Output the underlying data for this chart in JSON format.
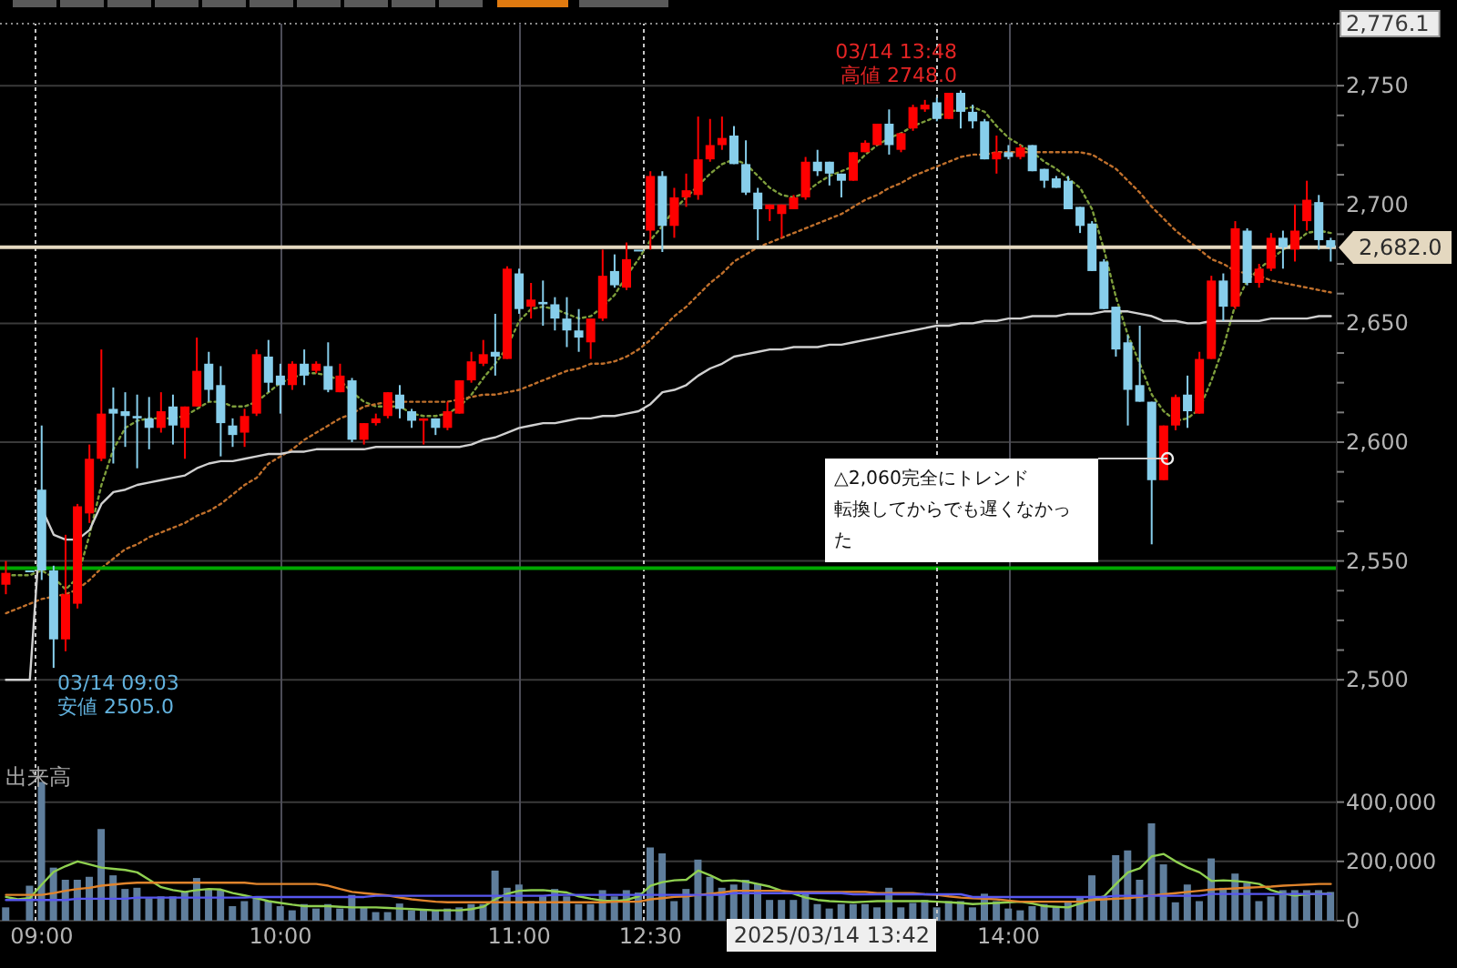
{
  "chart_data": [
    {
      "type": "candlestick",
      "categories": [
        null,
        null,
        null,
        null,
        null,
        null,
        null,
        null,
        null,
        null,
        null,
        null,
        null,
        null,
        null,
        null,
        null,
        null,
        null,
        null,
        null,
        null,
        null,
        null,
        null,
        null,
        null,
        null,
        null,
        null,
        null,
        null,
        null,
        null,
        null,
        null,
        null,
        null,
        null,
        null,
        null,
        null,
        null,
        null,
        null,
        null,
        null,
        null,
        null,
        null,
        null,
        null,
        null,
        null,
        null,
        null,
        null,
        null,
        null,
        null,
        null,
        null,
        null,
        null,
        null,
        null,
        null,
        null,
        null,
        null,
        null,
        null,
        null,
        null,
        null,
        null,
        null,
        null,
        null,
        null,
        null,
        null,
        null,
        null,
        null,
        null,
        null,
        null,
        null,
        null,
        null,
        null,
        null,
        null,
        null,
        null,
        null,
        null,
        null,
        null,
        null,
        null,
        null,
        null,
        null,
        null,
        null,
        null,
        null,
        null,
        null,
        null
      ],
      "ohlc": [
        [
          2540,
          2550,
          2536,
          2545
        ],
        null,
        [
          2546,
          2546,
          2546,
          2546
        ],
        [
          2580,
          2607,
          2542,
          2546
        ],
        [
          2546,
          2548,
          2505,
          2517
        ],
        [
          2517,
          2561,
          2512,
          2536
        ],
        [
          2532,
          2574,
          2530,
          2573
        ],
        [
          2570,
          2599,
          2566,
          2593
        ],
        [
          2593,
          2639,
          2592,
          2612
        ],
        [
          2614,
          2623,
          2591,
          2612
        ],
        [
          2613,
          2621,
          2598,
          2611
        ],
        [
          2611,
          2620,
          2589,
          2610
        ],
        [
          2610,
          2619,
          2597,
          2606
        ],
        [
          2606,
          2621,
          2604,
          2613
        ],
        [
          2615,
          2620,
          2599,
          2607
        ],
        [
          2606,
          2615,
          2593,
          2615
        ],
        [
          2615,
          2644,
          2615,
          2630
        ],
        [
          2633,
          2638,
          2617,
          2622
        ],
        [
          2624,
          2632,
          2594,
          2608
        ],
        [
          2607,
          2610,
          2598,
          2603
        ],
        [
          2604,
          2614,
          2598,
          2611
        ],
        [
          2612,
          2639,
          2611,
          2637
        ],
        [
          2636,
          2643,
          2621,
          2625
        ],
        [
          2628,
          2633,
          2612,
          2624
        ],
        [
          2624,
          2634,
          2622,
          2633
        ],
        [
          2633,
          2639,
          2624,
          2628
        ],
        [
          2630,
          2634,
          2629,
          2633
        ],
        [
          2632,
          2642,
          2621,
          2622
        ],
        [
          2621,
          2633,
          2621,
          2628
        ],
        [
          2626,
          2627,
          2600,
          2601
        ],
        [
          2601,
          2608,
          2599,
          2608
        ],
        [
          2608,
          2612,
          2607,
          2610
        ],
        [
          2611,
          2621,
          2610,
          2621
        ],
        [
          2620,
          2624,
          2610,
          2614
        ],
        [
          2613,
          2614,
          2606,
          2609
        ],
        [
          2609,
          2610,
          2599,
          2610
        ],
        [
          2610,
          2610,
          2603,
          2606
        ],
        [
          2606,
          2617,
          2605,
          2613
        ],
        [
          2612,
          2626,
          2612,
          2626
        ],
        [
          2626,
          2638,
          2625,
          2634
        ],
        [
          2633,
          2643,
          2632,
          2637
        ],
        [
          2638,
          2654,
          2628,
          2636
        ],
        [
          2635,
          2674,
          2635,
          2673
        ],
        [
          2671,
          2673,
          2654,
          2656
        ],
        [
          2657,
          2667,
          2652,
          2660
        ],
        [
          2659,
          2668,
          2649,
          2658
        ],
        [
          2658,
          2661,
          2647,
          2652
        ],
        [
          2652,
          2661,
          2640,
          2647
        ],
        [
          2647,
          2656,
          2638,
          2644
        ],
        [
          2642,
          2652,
          2635,
          2652
        ],
        [
          2652,
          2681,
          2651,
          2670
        ],
        [
          2672,
          2679,
          2665,
          2666
        ],
        [
          2665,
          2684,
          2664,
          2677
        ],
        [
          2681,
          2681,
          2681,
          2681
        ],
        [
          2689,
          2714,
          2681,
          2712
        ],
        [
          2712,
          2714,
          2680,
          2691
        ],
        [
          2691,
          2707,
          2686,
          2703
        ],
        [
          2703,
          2713,
          2699,
          2706
        ],
        [
          2704,
          2737,
          2702,
          2719
        ],
        [
          2719,
          2736,
          2718,
          2725
        ],
        [
          2725,
          2737,
          2723,
          2728
        ],
        [
          2729,
          2733,
          2717,
          2717
        ],
        [
          2717,
          2727,
          2704,
          2705
        ],
        [
          2705,
          2707,
          2685,
          2698
        ],
        [
          2698,
          2700,
          2693,
          2700
        ],
        [
          2696,
          2700,
          2686,
          2700
        ],
        [
          2698,
          2704,
          2698,
          2703
        ],
        [
          2703,
          2720,
          2702,
          2718
        ],
        [
          2718,
          2723,
          2712,
          2714
        ],
        [
          2718,
          2718,
          2708,
          2713
        ],
        [
          2713,
          2713,
          2703,
          2710
        ],
        [
          2710,
          2722,
          2710,
          2722
        ],
        [
          2722,
          2727,
          2722,
          2726
        ],
        [
          2725,
          2734,
          2725,
          2734
        ],
        [
          2734,
          2740,
          2721,
          2725
        ],
        [
          2723,
          2730,
          2722,
          2730
        ],
        [
          2732,
          2742,
          2731,
          2741
        ],
        [
          2740,
          2744,
          2739,
          2742
        ],
        [
          2743,
          2745,
          2735,
          2736
        ],
        [
          2736,
          2747,
          2736,
          2747
        ],
        [
          2747,
          2748,
          2732,
          2739
        ],
        [
          2739,
          2742,
          2732,
          2735
        ],
        [
          2735,
          2736,
          2719,
          2719
        ],
        [
          2719,
          2729,
          2713,
          2722
        ],
        [
          2722,
          2725,
          2719,
          2720
        ],
        [
          2720,
          2725,
          2719,
          2724
        ],
        [
          2725,
          2725,
          2714,
          2714
        ],
        [
          2715,
          2715,
          2707,
          2710
        ],
        [
          2711,
          2712,
          2707,
          2707
        ],
        [
          2710,
          2712,
          2698,
          2698
        ],
        [
          2699,
          2699,
          2688,
          2691
        ],
        [
          2692,
          2693,
          2672,
          2672
        ],
        [
          2676,
          2677,
          2656,
          2656
        ],
        [
          2657,
          2657,
          2636,
          2639
        ],
        [
          2642,
          2645,
          2607,
          2622
        ],
        [
          2624,
          2649,
          2617,
          2617
        ],
        [
          2617,
          2617,
          2557,
          2584
        ],
        [
          2584,
          2607,
          2584,
          2607
        ],
        [
          2607,
          2620,
          2605,
          2619
        ],
        [
          2620,
          2628,
          2606,
          2613
        ],
        [
          2612,
          2638,
          2612,
          2635
        ],
        [
          2635,
          2670,
          2635,
          2668
        ],
        [
          2668,
          2671,
          2651,
          2657
        ],
        [
          2657,
          2693,
          2656,
          2690
        ],
        [
          2689,
          2690,
          2666,
          2667
        ],
        [
          2667,
          2675,
          2665,
          2673
        ],
        [
          2673,
          2688,
          2672,
          2686
        ],
        [
          2686,
          2689,
          2673,
          2682
        ],
        [
          2681,
          2700,
          2676,
          2689
        ],
        [
          2693,
          2710,
          2689,
          2702
        ],
        [
          2701,
          2704,
          2681,
          2685
        ],
        [
          2685,
          2686,
          2676,
          2682
        ]
      ],
      "colors": [
        "#ff0000",
        null,
        "#87ceeb",
        "#87ceeb",
        "#87ceeb",
        "#ff0000",
        "#ff0000",
        "#ff0000",
        "#ff0000",
        "#87ceeb",
        "#87ceeb",
        "#87ceeb",
        "#87ceeb",
        "#ff0000",
        "#87ceeb",
        "#ff0000",
        "#ff0000",
        "#87ceeb",
        "#87ceeb",
        "#87ceeb",
        "#ff0000",
        "#ff0000",
        "#87ceeb",
        "#87ceeb",
        "#ff0000",
        "#87ceeb",
        "#ff0000",
        "#87ceeb",
        "#ff0000",
        "#87ceeb",
        "#ff0000",
        "#ff0000",
        "#ff0000",
        "#87ceeb",
        "#87ceeb",
        "#ff0000",
        "#87ceeb",
        "#ff0000",
        "#ff0000",
        "#ff0000",
        "#ff0000",
        "#87ceeb",
        "#ff0000",
        "#87ceeb",
        "#ff0000",
        "#87ceeb",
        "#87ceeb",
        "#87ceeb",
        "#87ceeb",
        "#ff0000",
        "#ff0000",
        "#87ceeb",
        "#ff0000",
        "#87ceeb",
        "#ff0000",
        "#87ceeb",
        "#ff0000",
        "#ff0000",
        "#ff0000",
        "#ff0000",
        "#ff0000",
        "#87ceeb",
        "#87ceeb",
        "#87ceeb",
        "#ff0000",
        "#ff0000",
        "#ff0000",
        "#ff0000",
        "#87ceeb",
        "#87ceeb",
        "#87ceeb",
        "#ff0000",
        "#ff0000",
        "#ff0000",
        "#87ceeb",
        "#ff0000",
        "#ff0000",
        "#ff0000",
        "#87ceeb",
        "#ff0000",
        "#87ceeb",
        "#87ceeb",
        "#87ceeb",
        "#ff0000",
        "#87ceeb",
        "#ff0000",
        "#87ceeb",
        "#87ceeb",
        "#87ceeb",
        "#87ceeb",
        "#87ceeb",
        "#87ceeb",
        "#87ceeb",
        "#87ceeb",
        "#87ceeb",
        "#87ceeb",
        "#87ceeb",
        "#ff0000",
        "#ff0000",
        "#87ceeb",
        "#ff0000",
        "#ff0000",
        "#87ceeb",
        "#ff0000",
        "#87ceeb",
        "#ff0000",
        "#ff0000",
        "#87ceeb",
        "#ff0000",
        "#ff0000",
        "#87ceeb",
        "#87ceeb"
      ],
      "series": [
        {
          "type": "line",
          "color": "#7e9e3c",
          "line_style": "dotted",
          "values": [
            2544,
            2544,
            2544,
            2546,
            2543,
            2538,
            2543,
            2561,
            2582,
            2597,
            2606,
            2609,
            2610,
            2610,
            2610,
            2611,
            2614,
            2617,
            2617,
            2615,
            2615,
            2617,
            2621,
            2625,
            2627,
            2629,
            2629,
            2628,
            2626,
            2621,
            2617,
            2615,
            2615,
            2615,
            2612,
            2611,
            2611,
            2612,
            2615,
            2620,
            2627,
            2633,
            2640,
            2651,
            2656,
            2657,
            2656,
            2654,
            2652,
            2653,
            2657,
            2662,
            2670,
            2677,
            2685,
            2691,
            2698,
            2703,
            2708,
            2713,
            2717,
            2719,
            2717,
            2712,
            2707,
            2704,
            2703,
            2705,
            2709,
            2712,
            2714,
            2716,
            2721,
            2725,
            2728,
            2730,
            2733,
            2735,
            2737,
            2739,
            2740,
            2741,
            2739,
            2733,
            2728,
            2725,
            2722,
            2718,
            2715,
            2711,
            2707,
            2698,
            2681,
            2661,
            2645,
            2633,
            2620,
            2613,
            2609,
            2610,
            2614,
            2626,
            2640,
            2658,
            2668,
            2673,
            2677,
            2681,
            2684,
            2688,
            2689,
            2688
          ]
        },
        {
          "type": "line",
          "color": "#c0702c",
          "line_style": "dotted",
          "values": [
            2528,
            2530,
            2532,
            2534,
            2535,
            2536,
            2538,
            2542,
            2547,
            2551,
            2555,
            2557,
            2560,
            2562,
            2564,
            2566,
            2569,
            2571,
            2574,
            2578,
            2582,
            2585,
            2591,
            2594,
            2597,
            2601,
            2604,
            2607,
            2610,
            2612,
            2615,
            2616,
            2617,
            2617,
            2617,
            2617,
            2617,
            2617,
            2618,
            2619,
            2620,
            2620,
            2621,
            2622,
            2624,
            2626,
            2628,
            2630,
            2631,
            2633,
            2633,
            2634,
            2636,
            2639,
            2643,
            2648,
            2653,
            2657,
            2662,
            2667,
            2671,
            2676,
            2679,
            2682,
            2684,
            2686,
            2688,
            2690,
            2692,
            2694,
            2696,
            2699,
            2702,
            2704,
            2707,
            2709,
            2712,
            2714,
            2716,
            2718,
            2720,
            2721,
            2721,
            2722,
            2722,
            2722,
            2722,
            2722,
            2722,
            2722,
            2722,
            2721,
            2718,
            2715,
            2710,
            2705,
            2699,
            2694,
            2689,
            2685,
            2681,
            2677,
            2675,
            2672,
            2671,
            2670,
            2668,
            2667,
            2666,
            2665,
            2664,
            2663
          ]
        },
        {
          "type": "line",
          "color": "#d0d0d0",
          "line_style": "solid",
          "values": [
            2500,
            2500,
            2500,
            2572,
            2561,
            2559,
            2559,
            2563,
            2574,
            2579,
            2580,
            2582,
            2583,
            2584,
            2585,
            2586,
            2589,
            2591,
            2592,
            2592,
            2593,
            2594,
            2595,
            2595,
            2596,
            2596,
            2597,
            2597,
            2597,
            2597,
            2597,
            2598,
            2598,
            2598,
            2598,
            2598,
            2598,
            2598,
            2598,
            2599,
            2601,
            2602,
            2604,
            2606,
            2607,
            2608,
            2608,
            2609,
            2610,
            2610,
            2611,
            2611,
            2612,
            2613,
            2616,
            2621,
            2622,
            2624,
            2628,
            2631,
            2633,
            2636,
            2637,
            2638,
            2639,
            2639,
            2640,
            2640,
            2640,
            2641,
            2641,
            2642,
            2643,
            2644,
            2645,
            2646,
            2647,
            2648,
            2649,
            2649,
            2650,
            2650,
            2651,
            2651,
            2652,
            2652,
            2653,
            2653,
            2653,
            2654,
            2654,
            2654,
            2655,
            2655,
            2655,
            2654,
            2653,
            2651,
            2651,
            2650,
            2650,
            2651,
            2651,
            2651,
            2651,
            2651,
            2652,
            2652,
            2652,
            2652,
            2653,
            2653
          ]
        }
      ],
      "ylim": [
        2466,
        2776.1
      ],
      "yticks": [
        {
          "value": 2500,
          "label": "2,500"
        },
        {
          "value": 2512.5,
          "label": null
        },
        {
          "value": 2525,
          "label": null
        },
        {
          "value": 2537.5,
          "label": null
        },
        {
          "value": 2550,
          "label": "2,550"
        },
        {
          "value": 2562.5,
          "label": null
        },
        {
          "value": 2575,
          "label": null
        },
        {
          "value": 2587.5,
          "label": null
        },
        {
          "value": 2600,
          "label": "2,600"
        },
        {
          "value": 2612.5,
          "label": null
        },
        {
          "value": 2625,
          "label": null
        },
        {
          "value": 2637.5,
          "label": null
        },
        {
          "value": 2650,
          "label": "2,650"
        },
        {
          "value": 2662.5,
          "label": null
        },
        {
          "value": 2675,
          "label": null
        },
        {
          "value": 2687.5,
          "label": null
        },
        {
          "value": 2700,
          "label": "2,700"
        },
        {
          "value": 2712.5,
          "label": null
        },
        {
          "value": 2725,
          "label": null
        },
        {
          "value": 2737.5,
          "label": null
        },
        {
          "value": 2750,
          "label": "2,750"
        },
        {
          "value": 2776.1,
          "label": "2,776.1"
        }
      ],
      "grid": true,
      "tick_labels": "y",
      "ref_lines": [
        {
          "axis": "y",
          "value": 2682,
          "label": "2,682.0",
          "color": "#e4d8c0"
        },
        {
          "axis": "y",
          "value": 2547,
          "color": "#00a800"
        }
      ],
      "annotations": [
        "03/14 13:48\n高値 2748.0",
        "03/14 09:03\n安値 2505.0",
        "△2,060完全にトレンド転換してからでも遅くなかった"
      ]
    },
    {
      "type": "bar",
      "title": "出来高",
      "categories": [
        null,
        null,
        null,
        "09:00",
        null,
        null,
        null,
        null,
        null,
        null,
        null,
        null,
        null,
        null,
        null,
        null,
        null,
        null,
        null,
        null,
        null,
        null,
        null,
        "10:00",
        null,
        null,
        null,
        null,
        null,
        null,
        null,
        null,
        null,
        null,
        null,
        null,
        null,
        null,
        null,
        null,
        null,
        null,
        null,
        "11:00",
        null,
        null,
        null,
        null,
        null,
        null,
        null,
        null,
        null,
        null,
        "12:30",
        null,
        null,
        null,
        null,
        null,
        null,
        null,
        null,
        null,
        null,
        null,
        null,
        null,
        null,
        null,
        null,
        null,
        null,
        null,
        null,
        null,
        null,
        null,
        null,
        null,
        null,
        null,
        null,
        null,
        "14:00",
        null,
        null,
        null,
        null,
        null,
        null,
        null,
        null,
        null,
        null,
        null,
        null,
        null,
        null,
        null,
        null,
        null,
        null,
        null,
        null,
        null,
        null,
        null,
        null,
        null,
        null,
        null
      ],
      "series": [
        {
          "color": "#5f7e9c",
          "values": [
            45000,
            null,
            118000,
            468000,
            179000,
            138000,
            138000,
            148000,
            309000,
            153000,
            107000,
            111000,
            76000,
            82000,
            82000,
            97000,
            144000,
            107000,
            103000,
            49000,
            66000,
            76000,
            66000,
            49000,
            35000,
            56000,
            41000,
            56000,
            41000,
            87000,
            45000,
            29000,
            29000,
            58000,
            35000,
            35000,
            35000,
            41000,
            45000,
            56000,
            56000,
            169000,
            111000,
            122000,
            66000,
            82000,
            107000,
            82000,
            56000,
            56000,
            103000,
            82000,
            103000,
            95000,
            247000,
            227000,
            66000,
            107000,
            206000,
            148000,
            111000,
            122000,
            138000,
            124000,
            70000,
            70000,
            70000,
            91000,
            56000,
            41000,
            56000,
            56000,
            56000,
            45000,
            111000,
            45000,
            60000,
            70000,
            45000,
            66000,
            66000,
            45000,
            91000,
            66000,
            41000,
            35000,
            49000,
            56000,
            49000,
            62000,
            80000,
            153000,
            82000,
            221000,
            237000,
            138000,
            328000,
            190000,
            62000,
            122000,
            66000,
            210000,
            111000,
            159000,
            128000,
            66000,
            82000,
            103000,
            103000,
            103000,
            103000,
            97000
          ]
        },
        {
          "type": "line",
          "color": "#8fd050",
          "line_style": "solid",
          "values": [
            80000,
            72000,
            76000,
            122000,
            165000,
            184000,
            200000,
            190000,
            179000,
            175000,
            171000,
            163000,
            138000,
            113000,
            103000,
            97000,
            103000,
            107000,
            105000,
            93000,
            85000,
            76000,
            66000,
            60000,
            54000,
            49000,
            49000,
            49000,
            47000,
            45000,
            45000,
            45000,
            43000,
            41000,
            39000,
            37000,
            35000,
            35000,
            35000,
            39000,
            47000,
            72000,
            91000,
            101000,
            103000,
            103000,
            99000,
            95000,
            82000,
            74000,
            68000,
            66000,
            70000,
            82000,
            118000,
            130000,
            136000,
            138000,
            169000,
            153000,
            134000,
            136000,
            132000,
            124000,
            115000,
            101000,
            91000,
            78000,
            70000,
            66000,
            64000,
            62000,
            64000,
            66000,
            66000,
            66000,
            66000,
            66000,
            64000,
            62000,
            60000,
            56000,
            58000,
            60000,
            62000,
            64000,
            58000,
            49000,
            47000,
            45000,
            58000,
            70000,
            82000,
            124000,
            163000,
            177000,
            217000,
            225000,
            200000,
            179000,
            163000,
            134000,
            136000,
            134000,
            130000,
            124000,
            103000,
            91000,
            85000,
            89000,
            91000,
            91000
          ]
        },
        {
          "type": "line",
          "color": "#e0842c",
          "line_style": "solid",
          "values": [
            87000,
            87000,
            87000,
            87000,
            93000,
            101000,
            107000,
            111000,
            118000,
            122000,
            126000,
            128000,
            128000,
            128000,
            128000,
            128000,
            128000,
            128000,
            128000,
            128000,
            128000,
            124000,
            124000,
            124000,
            124000,
            124000,
            124000,
            118000,
            107000,
            97000,
            93000,
            89000,
            85000,
            78000,
            72000,
            68000,
            64000,
            62000,
            62000,
            62000,
            62000,
            62000,
            62000,
            62000,
            62000,
            62000,
            62000,
            62000,
            62000,
            62000,
            62000,
            64000,
            64000,
            64000,
            72000,
            76000,
            80000,
            82000,
            87000,
            91000,
            95000,
            101000,
            101000,
            101000,
            101000,
            101000,
            97000,
            97000,
            97000,
            97000,
            97000,
            97000,
            97000,
            93000,
            93000,
            93000,
            93000,
            89000,
            87000,
            82000,
            78000,
            76000,
            74000,
            72000,
            68000,
            64000,
            64000,
            64000,
            64000,
            64000,
            64000,
            70000,
            72000,
            74000,
            76000,
            80000,
            85000,
            89000,
            93000,
            97000,
            101000,
            105000,
            107000,
            109000,
            111000,
            113000,
            115000,
            118000,
            120000,
            122000,
            124000,
            124000
          ]
        },
        {
          "type": "line",
          "color": "#5858f0",
          "line_style": "solid",
          "values": [
            70000,
            70000,
            70000,
            70000,
            70000,
            70000,
            74000,
            74000,
            74000,
            74000,
            74000,
            78000,
            78000,
            78000,
            78000,
            78000,
            78000,
            78000,
            78000,
            78000,
            78000,
            80000,
            80000,
            80000,
            80000,
            80000,
            80000,
            80000,
            80000,
            80000,
            80000,
            84000,
            84000,
            84000,
            84000,
            84000,
            84000,
            84000,
            84000,
            84000,
            84000,
            84000,
            84000,
            84000,
            84000,
            84000,
            87000,
            87000,
            87000,
            87000,
            87000,
            87000,
            87000,
            87000,
            87000,
            87000,
            87000,
            87000,
            87000,
            87000,
            87000,
            93000,
            93000,
            93000,
            93000,
            93000,
            93000,
            93000,
            93000,
            93000,
            93000,
            89000,
            89000,
            89000,
            89000,
            89000,
            89000,
            89000,
            89000,
            89000,
            89000,
            80000,
            80000,
            80000,
            80000,
            80000,
            80000,
            80000,
            80000,
            80000,
            80000,
            80000,
            80000,
            84000,
            84000,
            84000,
            84000,
            84000,
            84000,
            84000,
            84000,
            90000,
            90000,
            90000,
            90000,
            90000,
            90000,
            90000,
            90000,
            90000,
            90000,
            90000
          ]
        }
      ],
      "ylim": [
        0,
        540000
      ],
      "yticks": [
        0,
        {
          "value": 200000,
          "label": "200,000"
        },
        {
          "value": 400000,
          "label": "400,000"
        }
      ],
      "grid": true,
      "annotations": [
        "2025/03/14 13:42"
      ]
    }
  ]
}
